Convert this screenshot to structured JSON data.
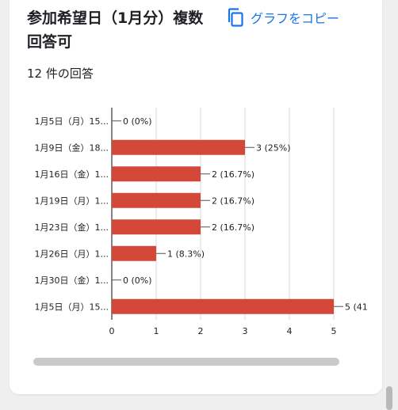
{
  "question": {
    "title": "参加希望日（1月分）複数回答可",
    "copy_label": "グラフをコピー",
    "response_count": "12 件の回答"
  },
  "colors": {
    "bar": "#d4483a",
    "accent": "#1a73e8"
  },
  "icons": {
    "copy": "copy-icon"
  },
  "chart_data": {
    "type": "bar",
    "orientation": "horizontal",
    "categories": [
      "1月5日（月）15...",
      "1月9日（金）18...",
      "1月16日（金）1...",
      "1月19日（月）1...",
      "1月23日（金）1...",
      "1月26日（月）1...",
      "1月30日（金）1...",
      "1月5日（月）15..."
    ],
    "values": [
      0,
      3,
      2,
      2,
      2,
      1,
      0,
      5
    ],
    "data_labels": [
      "0 (0%)",
      "3 (25%)",
      "2 (16.7%)",
      "2 (16.7%)",
      "2 (16.7%)",
      "1 (8.3%)",
      "0 (0%)",
      "5 (41"
    ],
    "x_ticks": [
      "0",
      "1",
      "2",
      "3",
      "4",
      "5"
    ],
    "xlim": [
      0,
      5
    ],
    "grid": true
  }
}
